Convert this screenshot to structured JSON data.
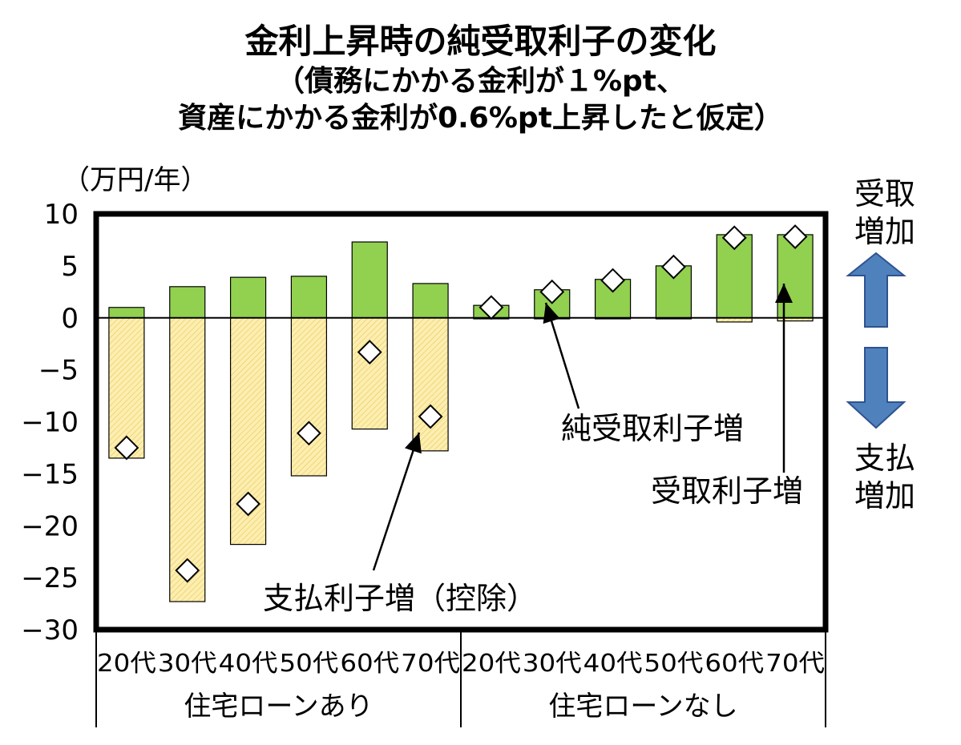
{
  "title": "金利上昇時の純受取利子の変化",
  "subtitle_line1": "（債務にかかる金利が１%pt、",
  "subtitle_line2": "資産にかかる金利が0.6%pt上昇したと仮定）",
  "colors": {
    "receipt_bar": "#92d050",
    "payment_bar": "#fdeeb0",
    "payment_bar_hatch": "#e6c85a",
    "arrow_fill": "#4f81bd",
    "arrow_stroke": "#2f528f"
  },
  "chart_data": {
    "type": "bar",
    "unit_label": "（万円/年）",
    "ylim": [
      -30,
      10
    ],
    "yticks": [
      10,
      5,
      0,
      -5,
      -10,
      -15,
      -20,
      -25,
      -30
    ],
    "ytick_labels": [
      "10",
      "5",
      "0",
      "−5",
      "−10",
      "−15",
      "−20",
      "−25",
      "−30"
    ],
    "categories": [
      "20代",
      "30代",
      "40代",
      "50代",
      "60代",
      "70代",
      "20代",
      "30代",
      "40代",
      "50代",
      "60代",
      "70代"
    ],
    "groups": [
      {
        "label": "住宅ローンあり",
        "count": 6
      },
      {
        "label": "住宅ローンなし",
        "count": 6
      }
    ],
    "series": [
      {
        "name": "受取利子増",
        "style": "bar",
        "values": [
          1.0,
          3.0,
          3.9,
          4.0,
          7.3,
          3.3,
          1.2,
          2.7,
          3.7,
          5.0,
          8.0,
          8.0
        ]
      },
      {
        "name": "支払利子増（控除）",
        "style": "bar",
        "values": [
          -13.5,
          -27.3,
          -21.8,
          -15.2,
          -10.7,
          -12.8,
          -0.1,
          -0.1,
          -0.1,
          -0.1,
          -0.4,
          -0.3
        ]
      },
      {
        "name": "純受取利子増",
        "style": "marker",
        "values": [
          -12.5,
          -24.3,
          -17.9,
          -11.1,
          -3.3,
          -9.5,
          1.0,
          2.5,
          3.6,
          4.9,
          7.7,
          7.8
        ]
      }
    ],
    "annotations": {
      "net": "純受取利子増",
      "receipt": "受取利子増",
      "payment": "支払利子増（控除）"
    },
    "direction_labels": {
      "up_line1": "受取",
      "up_line2": "増加",
      "down_line1": "支払",
      "down_line2": "増加"
    }
  }
}
